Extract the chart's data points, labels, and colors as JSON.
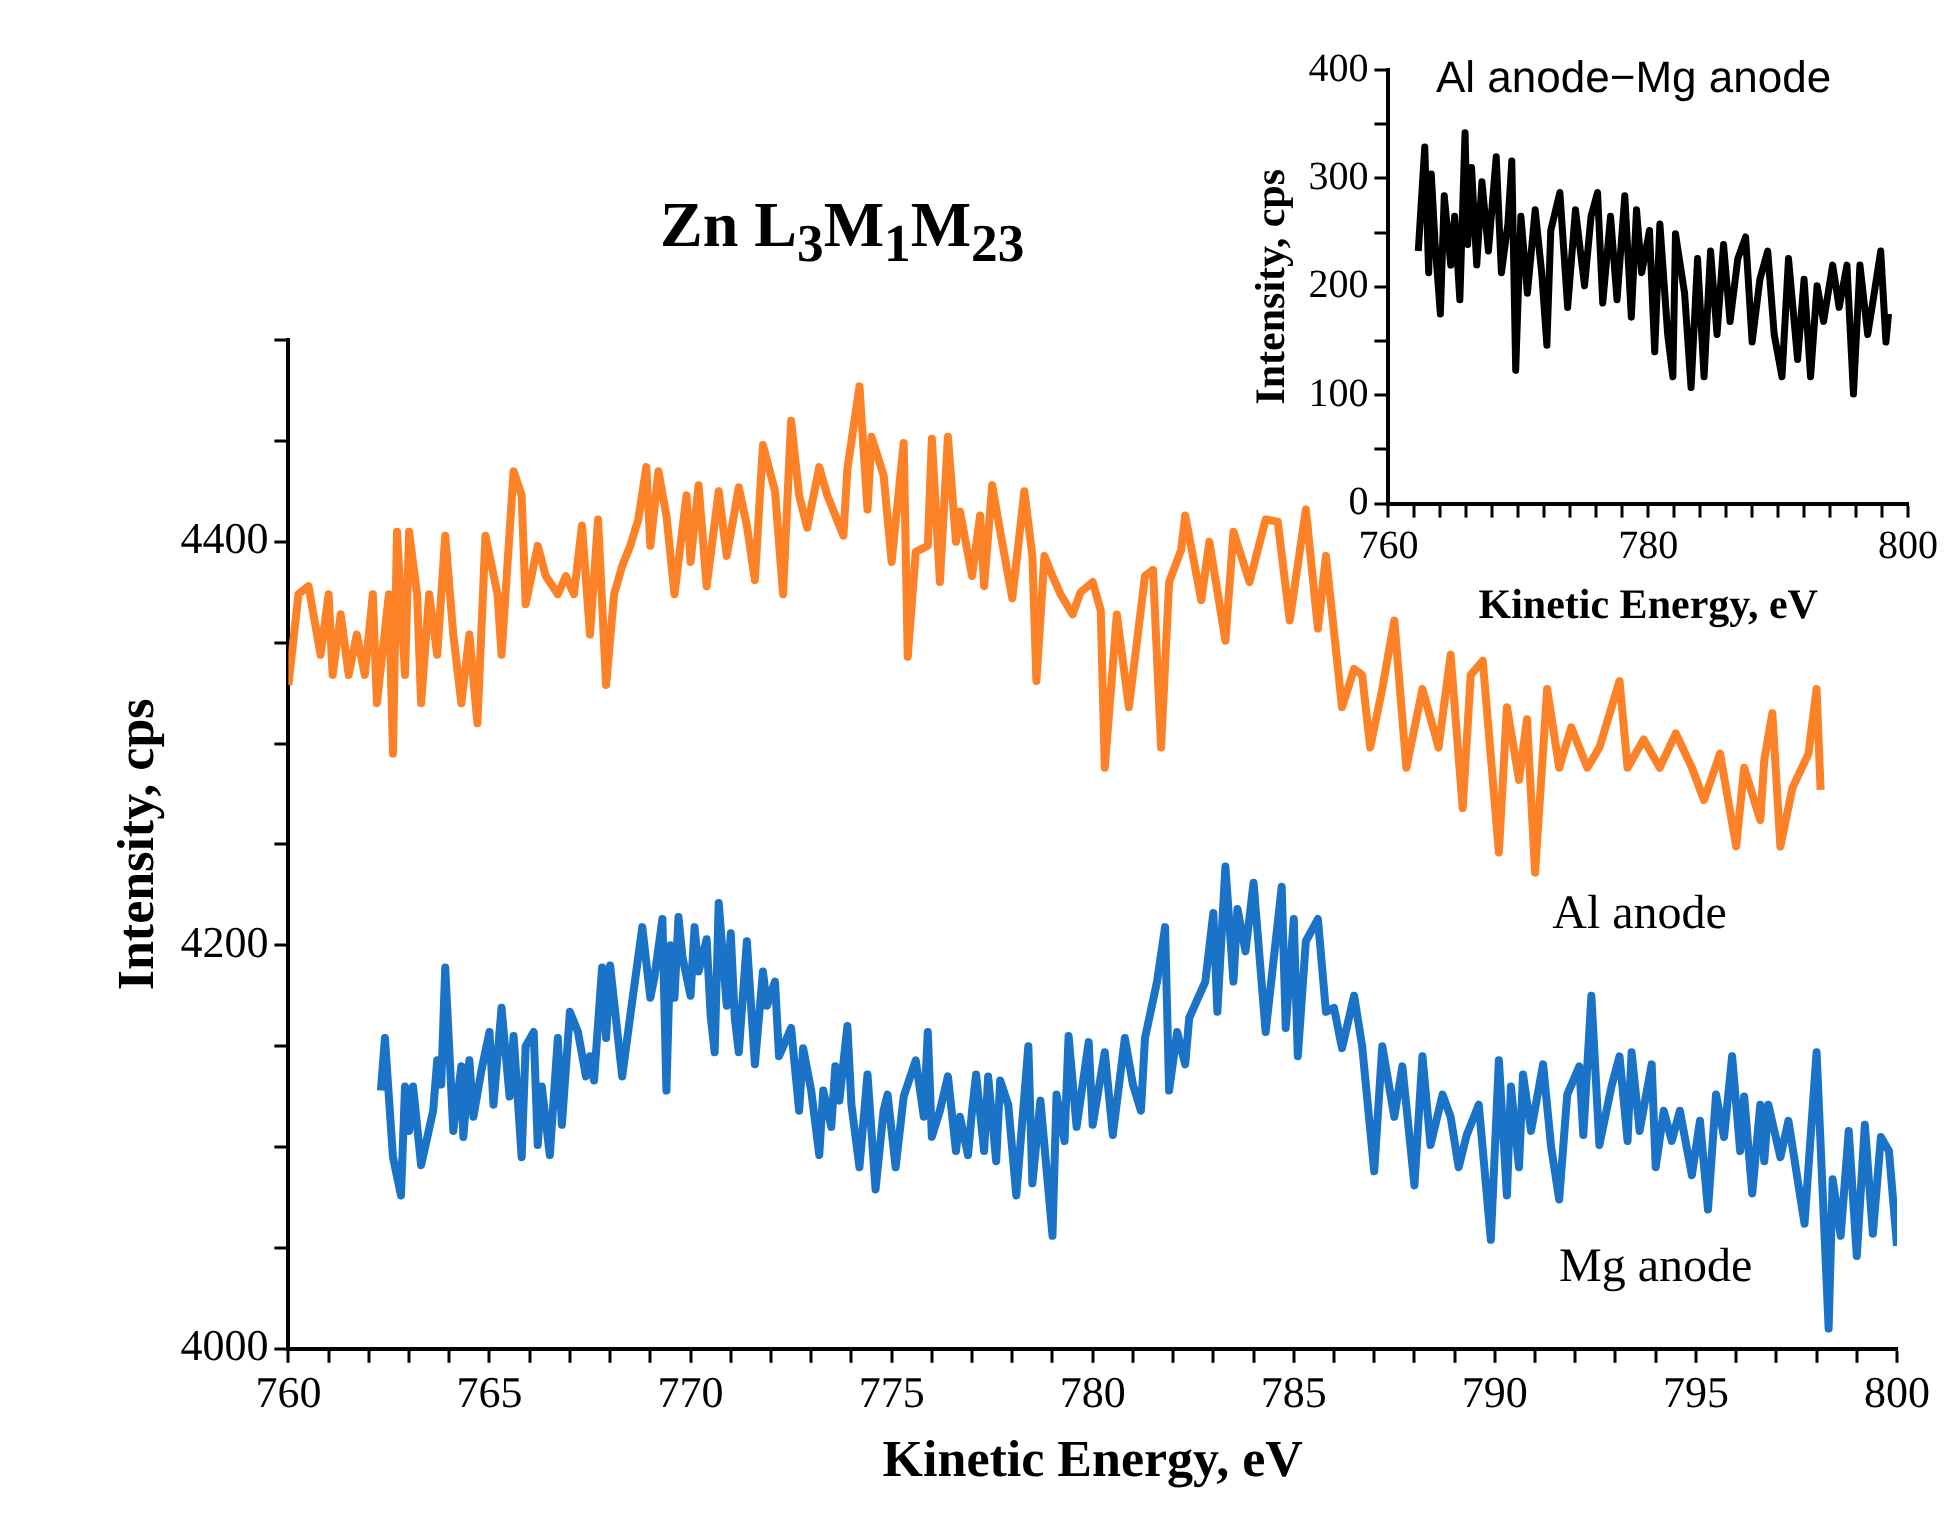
{
  "chart_data": [
    {
      "type": "line",
      "title": "Zn L$_{3}$M$_{1}$M$_{23}$",
      "xlabel": "Kinetic Energy, eV",
      "ylabel": "Intensity, cps",
      "xlim": [
        760,
        800
      ],
      "ylim": [
        4000,
        4500
      ],
      "xticks": [
        760,
        {
          "value": 761,
          "label": null
        },
        {
          "value": 762,
          "label": null
        },
        {
          "value": 763,
          "label": null
        },
        {
          "value": 764,
          "label": null
        },
        765,
        {
          "value": 766,
          "label": null
        },
        {
          "value": 767,
          "label": null
        },
        {
          "value": 768,
          "label": null
        },
        {
          "value": 769,
          "label": null
        },
        770,
        {
          "value": 771,
          "label": null
        },
        {
          "value": 772,
          "label": null
        },
        {
          "value": 773,
          "label": null
        },
        {
          "value": 774,
          "label": null
        },
        775,
        {
          "value": 776,
          "label": null
        },
        {
          "value": 777,
          "label": null
        },
        {
          "value": 778,
          "label": null
        },
        {
          "value": 779,
          "label": null
        },
        780,
        {
          "value": 781,
          "label": null
        },
        {
          "value": 782,
          "label": null
        },
        {
          "value": 783,
          "label": null
        },
        {
          "value": 784,
          "label": null
        },
        785,
        {
          "value": 786,
          "label": null
        },
        {
          "value": 787,
          "label": null
        },
        {
          "value": 788,
          "label": null
        },
        {
          "value": 789,
          "label": null
        },
        790,
        {
          "value": 791,
          "label": null
        },
        {
          "value": 792,
          "label": null
        },
        {
          "value": 793,
          "label": null
        },
        {
          "value": 794,
          "label": null
        },
        795,
        {
          "value": 796,
          "label": null
        },
        {
          "value": 797,
          "label": null
        },
        {
          "value": 798,
          "label": null
        },
        {
          "value": 799,
          "label": null
        },
        800
      ],
      "yticks": [
        4000,
        {
          "value": 4050,
          "label": null
        },
        {
          "value": 4100,
          "label": null
        },
        {
          "value": 4150,
          "label": null
        },
        4200,
        {
          "value": 4250,
          "label": null
        },
        {
          "value": 4300,
          "label": null
        },
        {
          "value": 4350,
          "label": null
        },
        4400,
        {
          "value": 4450,
          "label": null
        },
        {
          "value": 4500,
          "label": null
        }
      ],
      "series": [
        {
          "name": "Al anode",
          "color": "#fd8127",
          "x": [
            760.0,
            760.25,
            760.5,
            760.8,
            761.0,
            761.1,
            761.3,
            761.5,
            761.7,
            761.9,
            762.1,
            762.2,
            762.5,
            762.6,
            762.7,
            762.9,
            763.0,
            763.2,
            763.3,
            763.5,
            763.7,
            763.9,
            764.1,
            764.3,
            764.5,
            764.7,
            764.9,
            765.2,
            765.3,
            765.6,
            765.8,
            765.9,
            766.2,
            766.4,
            766.7,
            766.9,
            767.1,
            767.3,
            767.5,
            767.7,
            767.9,
            768.1,
            768.3,
            768.5,
            768.7,
            768.9,
            769.0,
            769.2,
            769.4,
            769.6,
            769.9,
            770.0,
            770.2,
            770.4,
            770.7,
            770.9,
            771.2,
            771.4,
            771.6,
            771.8,
            772.1,
            772.3,
            772.5,
            772.7,
            772.9,
            773.2,
            773.4,
            773.8,
            773.9,
            774.2,
            774.4,
            774.5,
            774.8,
            775.0,
            775.3,
            775.4,
            775.6,
            775.9,
            776.0,
            776.2,
            776.4,
            776.6,
            776.7,
            777.0,
            777.2,
            777.3,
            777.5,
            777.7,
            778.0,
            778.3,
            778.5,
            778.6,
            778.8,
            779.0,
            779.2,
            779.5,
            779.7,
            780.0,
            780.2,
            780.3,
            780.6,
            780.9,
            781.3,
            781.5,
            781.7,
            781.9,
            782.2,
            782.3,
            782.7,
            782.9,
            783.3,
            783.5,
            783.9,
            784.3,
            784.6,
            784.9,
            785.3,
            785.6,
            785.8,
            786.2,
            786.5,
            786.7,
            786.9,
            787.2,
            787.5,
            787.8,
            788.2,
            788.6,
            788.9,
            789.2,
            789.4,
            789.7,
            790.1,
            790.3,
            790.6,
            790.8,
            791.0,
            791.3,
            791.6,
            791.9,
            792.3,
            792.6,
            793.1,
            793.3,
            793.7,
            794.1,
            794.5,
            794.9,
            795.2,
            795.6,
            796.0,
            796.2,
            796.6,
            796.7,
            796.9,
            797.1,
            797.4,
            797.8,
            798.0,
            798.1
          ],
          "values": [
            4329,
            4374,
            4378,
            4344,
            4374,
            4334,
            4364,
            4334,
            4354,
            4334,
            4374,
            4320,
            4374,
            4295,
            4405,
            4334,
            4405,
            4374,
            4320,
            4374,
            4344,
            4403,
            4354,
            4320,
            4354,
            4310,
            4403,
            4374,
            4344,
            4435,
            4423,
            4369,
            4398,
            4383,
            4374,
            4383,
            4374,
            4408,
            4354,
            4411,
            4329,
            4374,
            4388,
            4398,
            4411,
            4437,
            4398,
            4435,
            4413,
            4374,
            4423,
            4390,
            4428,
            4378,
            4425,
            4393,
            4427,
            4408,
            4381,
            4448,
            4425,
            4374,
            4460,
            4423,
            4407,
            4437,
            4423,
            4403,
            4436,
            4477,
            4416,
            4452,
            4433,
            4390,
            4449,
            4343,
            4395,
            4398,
            4451,
            4380,
            4452,
            4400,
            4415,
            4383,
            4413,
            4378,
            4428,
            4405,
            4372,
            4425,
            4393,
            4331,
            4393,
            4383,
            4374,
            4364,
            4375,
            4380,
            4366,
            4288,
            4364,
            4318,
            4383,
            4386,
            4298,
            4380,
            4396,
            4413,
            4371,
            4400,
            4351,
            4405,
            4380,
            4411,
            4410,
            4361,
            4416,
            4357,
            4393,
            4318,
            4337,
            4334,
            4298,
            4327,
            4361,
            4288,
            4327,
            4298,
            4344,
            4268,
            4334,
            4341,
            4246,
            4318,
            4282,
            4312,
            4236,
            4327,
            4288,
            4308,
            4288,
            4298,
            4331,
            4288,
            4302,
            4288,
            4305,
            4288,
            4272,
            4295,
            4249,
            4288,
            4262,
            4292,
            4315,
            4249,
            4278,
            4295,
            4327,
            4277
          ]
        },
        {
          "name": "Mg anode",
          "color": "#1b73c8",
          "x": [
            762.3,
            762.4,
            762.6,
            762.8,
            762.9,
            763.0,
            763.1,
            763.3,
            763.6,
            763.7,
            763.8,
            763.9,
            764.1,
            764.3,
            764.35,
            764.5,
            764.6,
            764.8,
            765.0,
            765.1,
            765.3,
            765.5,
            765.6,
            765.8,
            765.9,
            766.1,
            766.2,
            766.3,
            766.5,
            766.7,
            766.8,
            767.0,
            767.2,
            767.4,
            767.5,
            767.6,
            767.8,
            767.9,
            768.0,
            768.3,
            768.5,
            768.8,
            769.0,
            769.1,
            769.3,
            769.4,
            769.5,
            769.6,
            769.7,
            769.8,
            770.0,
            770.1,
            770.2,
            770.4,
            770.5,
            770.6,
            770.7,
            770.9,
            771.0,
            771.1,
            771.2,
            771.4,
            771.6,
            771.8,
            771.9,
            772.1,
            772.2,
            772.5,
            772.7,
            772.8,
            773.0,
            773.2,
            773.3,
            773.5,
            773.6,
            773.7,
            773.9,
            774.0,
            774.2,
            774.4,
            774.6,
            774.8,
            774.9,
            775.1,
            775.3,
            775.6,
            775.8,
            775.9,
            776.0,
            776.2,
            776.4,
            776.6,
            776.7,
            776.9,
            777.0,
            777.1,
            777.3,
            777.4,
            777.6,
            777.7,
            777.9,
            778.1,
            778.4,
            778.5,
            778.7,
            779.0,
            779.1,
            779.3,
            779.4,
            779.6,
            779.9,
            780.0,
            780.2,
            780.3,
            780.5,
            780.8,
            781.0,
            781.2,
            781.3,
            781.6,
            781.8,
            781.9,
            782.1,
            782.3,
            782.4,
            782.8,
            783.0,
            783.1,
            783.3,
            783.5,
            783.6,
            783.8,
            784.0,
            784.3,
            784.7,
            784.8,
            785.0,
            785.1,
            785.3,
            785.6,
            785.8,
            786.0,
            786.2,
            786.5,
            786.7,
            787.0,
            787.2,
            787.5,
            787.7,
            788.0,
            788.2,
            788.4,
            788.7,
            788.9,
            789.1,
            789.3,
            789.6,
            789.9,
            790.1,
            790.3,
            790.4,
            790.6,
            790.7,
            790.9,
            791.2,
            791.4,
            791.6,
            791.8,
            792.1,
            792.2,
            792.4,
            792.6,
            792.9,
            793.1,
            793.3,
            793.4,
            793.6,
            793.9,
            794.0,
            794.2,
            794.4,
            794.6,
            794.9,
            795.1,
            795.3,
            795.5,
            795.7,
            795.9,
            796.1,
            796.2,
            796.4,
            796.6,
            796.7,
            796.8,
            797.1,
            797.3,
            797.7,
            798.0,
            798.3,
            798.4,
            798.6,
            798.8,
            799.0,
            799.2,
            799.4,
            799.6,
            799.8,
            800.0
          ],
          "values": [
            4128,
            4154,
            4095,
            4076,
            4130,
            4108,
            4130,
            4091,
            4118,
            4143,
            4131,
            4189,
            4108,
            4140,
            4105,
            4143,
            4115,
            4138,
            4157,
            4121,
            4169,
            4125,
            4155,
            4095,
            4150,
            4157,
            4101,
            4130,
            4096,
            4154,
            4111,
            4167,
            4157,
            4135,
            4145,
            4133,
            4189,
            4154,
            4190,
            4135,
            4165,
            4209,
            4174,
            4184,
            4213,
            4128,
            4200,
            4174,
            4214,
            4194,
            4175,
            4209,
            4187,
            4203,
            4165,
            4147,
            4221,
            4170,
            4206,
            4164,
            4147,
            4202,
            4141,
            4187,
            4170,
            4182,
            4145,
            4159,
            4118,
            4149,
            4128,
            4096,
            4128,
            4110,
            4140,
            4123,
            4160,
            4121,
            4090,
            4136,
            4079,
            4118,
            4126,
            4090,
            4125,
            4143,
            4115,
            4157,
            4105,
            4118,
            4135,
            4098,
            4115,
            4096,
            4118,
            4136,
            4098,
            4135,
            4093,
            4133,
            4121,
            4076,
            4150,
            4082,
            4123,
            4056,
            4126,
            4103,
            4155,
            4110,
            4152,
            4111,
            4135,
            4147,
            4106,
            4154,
            4131,
            4118,
            4154,
            4182,
            4209,
            4128,
            4157,
            4141,
            4164,
            4182,
            4216,
            4167,
            4239,
            4182,
            4218,
            4197,
            4231,
            4157,
            4229,
            4159,
            4213,
            4145,
            4202,
            4213,
            4167,
            4169,
            4149,
            4175,
            4150,
            4088,
            4150,
            4115,
            4140,
            4081,
            4145,
            4101,
            4126,
            4115,
            4090,
            4106,
            4121,
            4054,
            4143,
            4076,
            4130,
            4090,
            4136,
            4108,
            4141,
            4100,
            4074,
            4126,
            4140,
            4106,
            4175,
            4101,
            4130,
            4145,
            4103,
            4147,
            4108,
            4141,
            4090,
            4118,
            4103,
            4118,
            4086,
            4113,
            4069,
            4126,
            4105,
            4145,
            4098,
            4125,
            4077,
            4121,
            4093,
            4121,
            4095,
            4113,
            4062,
            4147,
            4010,
            4084,
            4056,
            4108,
            4046,
            4111,
            4057,
            4105,
            4098,
            4051
          ]
        }
      ]
    },
    {
      "type": "line",
      "title": "Al anode−Mg anode",
      "xlabel": "Kinetic Energy, eV",
      "ylabel": "Intensity, cps",
      "xlim": [
        760,
        800
      ],
      "ylim": [
        0,
        400
      ],
      "xticks": [
        760,
        {
          "value": 762,
          "label": null
        },
        {
          "value": 764,
          "label": null
        },
        {
          "value": 766,
          "label": null
        },
        {
          "value": 768,
          "label": null
        },
        {
          "value": 770,
          "label": null
        },
        {
          "value": 772,
          "label": null
        },
        {
          "value": 774,
          "label": null
        },
        {
          "value": 776,
          "label": null
        },
        {
          "value": 778,
          "label": null
        },
        780,
        {
          "value": 782,
          "label": null
        },
        {
          "value": 784,
          "label": null
        },
        {
          "value": 786,
          "label": null
        },
        {
          "value": 788,
          "label": null
        },
        {
          "value": 790,
          "label": null
        },
        {
          "value": 792,
          "label": null
        },
        {
          "value": 794,
          "label": null
        },
        {
          "value": 796,
          "label": null
        },
        {
          "value": 798,
          "label": null
        },
        800
      ],
      "yticks": [
        0,
        {
          "value": 50,
          "label": null
        },
        100,
        {
          "value": 150,
          "label": null
        },
        200,
        {
          "value": 250,
          "label": null
        },
        300,
        {
          "value": 350,
          "label": null
        },
        400
      ],
      "series": [
        {
          "color": "#000000",
          "x": [
            762.3,
            762.6,
            762.8,
            763.1,
            763.3,
            763.6,
            764.0,
            764.3,
            764.8,
            765.1,
            765.5,
            765.9,
            766.1,
            766.4,
            766.8,
            767.2,
            767.7,
            768.3,
            768.7,
            769.2,
            769.5,
            769.8,
            770.2,
            770.7,
            771.3,
            771.8,
            772.2,
            772.5,
            773.2,
            773.8,
            774.4,
            775.1,
            775.6,
            776.1,
            776.5,
            777.1,
            777.6,
            778.2,
            778.7,
            779.1,
            779.5,
            780.1,
            780.5,
            780.9,
            781.5,
            781.9,
            782.1,
            782.8,
            783.3,
            783.8,
            784.3,
            784.8,
            785.3,
            785.8,
            786.3,
            786.9,
            787.5,
            788.0,
            788.6,
            789.2,
            789.7,
            790.3,
            790.8,
            791.5,
            792.0,
            792.5,
            793.0,
            793.5,
            794.2,
            794.7,
            795.3,
            795.8,
            796.3,
            796.9,
            797.4,
            797.9,
            798.3,
            798.5
          ],
          "values": [
            233,
            291,
            329,
            213,
            304,
            239,
            175,
            284,
            220,
            265,
            188,
            342,
            239,
            310,
            220,
            297,
            233,
            320,
            213,
            258,
            316,
            123,
            265,
            194,
            271,
            213,
            146,
            252,
            287,
            181,
            271,
            201,
            265,
            287,
            185,
            265,
            188,
            284,
            172,
            271,
            213,
            252,
            140,
            258,
            156,
            117,
            249,
            194,
            107,
            226,
            117,
            233,
            156,
            239,
            168,
            226,
            246,
            149,
            207,
            233,
            156,
            117,
            226,
            133,
            207,
            117,
            201,
            168,
            220,
            181,
            220,
            101,
            220,
            156,
            194,
            233,
            149,
            175
          ]
        }
      ]
    }
  ]
}
